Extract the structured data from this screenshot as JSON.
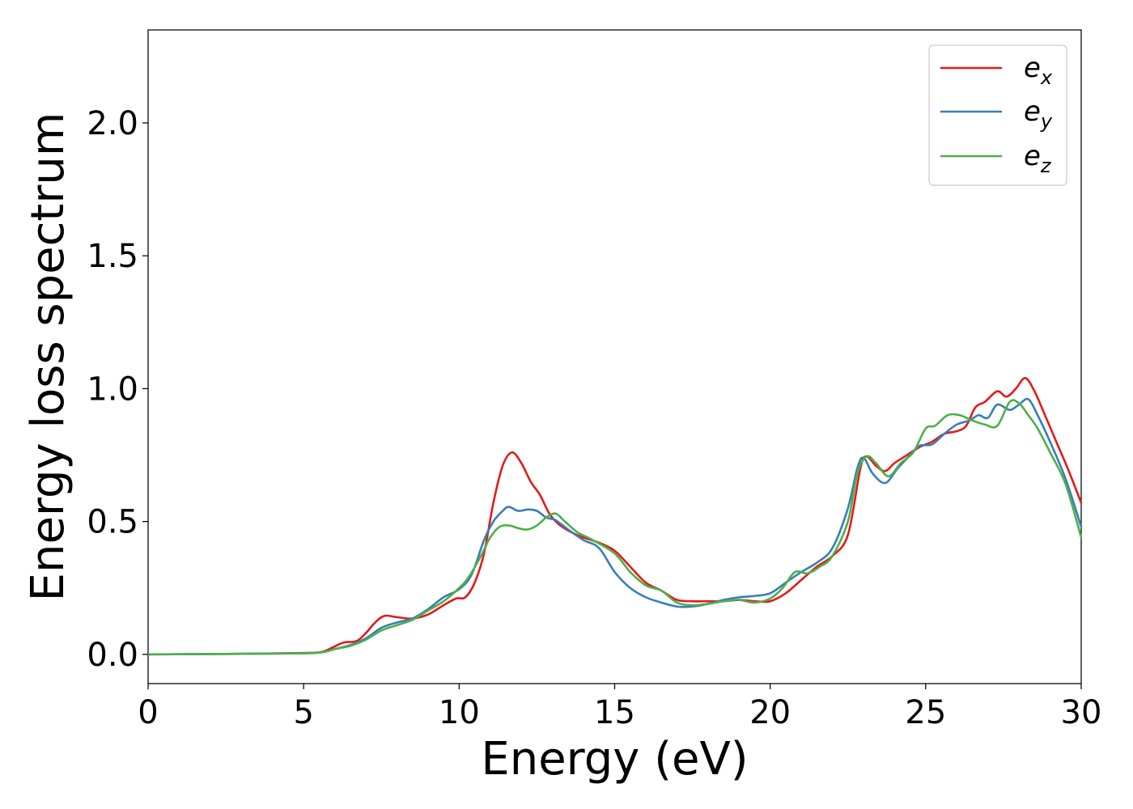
{
  "chart_data": {
    "type": "line",
    "title": "",
    "xlabel": "Energy (eV)",
    "ylabel": "Energy loss spectrum",
    "xlim": [
      0,
      30
    ],
    "ylim": [
      -0.11,
      2.35
    ],
    "xticks": [
      0,
      5,
      10,
      15,
      20,
      25,
      30
    ],
    "xtick_labels": [
      "0",
      "5",
      "10",
      "15",
      "20",
      "25",
      "30"
    ],
    "yticks": [
      0.0,
      0.5,
      1.0,
      1.5,
      2.0
    ],
    "ytick_labels": [
      "0.0",
      "0.5",
      "1.0",
      "1.5",
      "2.0"
    ],
    "grid": false,
    "legend_position": "top-right",
    "series": [
      {
        "name": "e",
        "subscript": "x",
        "color": "#e41a1c",
        "points": [
          [
            0,
            0
          ],
          [
            3,
            0.002
          ],
          [
            5,
            0.005
          ],
          [
            5.6,
            0.01
          ],
          [
            6,
            0.03
          ],
          [
            6.3,
            0.045
          ],
          [
            6.7,
            0.05
          ],
          [
            7,
            0.08
          ],
          [
            7.3,
            0.12
          ],
          [
            7.6,
            0.145
          ],
          [
            8,
            0.14
          ],
          [
            8.5,
            0.135
          ],
          [
            9,
            0.15
          ],
          [
            9.5,
            0.185
          ],
          [
            9.9,
            0.21
          ],
          [
            10.2,
            0.215
          ],
          [
            10.5,
            0.27
          ],
          [
            10.8,
            0.38
          ],
          [
            11.1,
            0.57
          ],
          [
            11.4,
            0.71
          ],
          [
            11.7,
            0.76
          ],
          [
            12,
            0.72
          ],
          [
            12.3,
            0.65
          ],
          [
            12.6,
            0.6
          ],
          [
            12.9,
            0.53
          ],
          [
            13.2,
            0.49
          ],
          [
            13.6,
            0.46
          ],
          [
            14,
            0.44
          ],
          [
            14.5,
            0.42
          ],
          [
            15,
            0.39
          ],
          [
            15.5,
            0.33
          ],
          [
            16,
            0.27
          ],
          [
            16.5,
            0.24
          ],
          [
            17,
            0.205
          ],
          [
            17.5,
            0.2
          ],
          [
            18,
            0.2
          ],
          [
            18.5,
            0.2
          ],
          [
            19,
            0.205
          ],
          [
            19.5,
            0.2
          ],
          [
            20,
            0.2
          ],
          [
            20.5,
            0.23
          ],
          [
            21,
            0.28
          ],
          [
            21.5,
            0.33
          ],
          [
            22,
            0.37
          ],
          [
            22.5,
            0.45
          ],
          [
            22.9,
            0.7
          ],
          [
            23.1,
            0.745
          ],
          [
            23.4,
            0.71
          ],
          [
            23.7,
            0.69
          ],
          [
            24,
            0.72
          ],
          [
            24.4,
            0.75
          ],
          [
            24.8,
            0.78
          ],
          [
            25.2,
            0.8
          ],
          [
            25.6,
            0.83
          ],
          [
            26,
            0.84
          ],
          [
            26.3,
            0.86
          ],
          [
            26.6,
            0.93
          ],
          [
            26.9,
            0.95
          ],
          [
            27.3,
            0.99
          ],
          [
            27.6,
            0.97
          ],
          [
            27.9,
            1.0
          ],
          [
            28.2,
            1.04
          ],
          [
            28.5,
            0.99
          ],
          [
            28.8,
            0.91
          ],
          [
            29.2,
            0.8
          ],
          [
            29.6,
            0.69
          ],
          [
            30,
            0.57
          ]
        ]
      },
      {
        "name": "e",
        "subscript": "y",
        "color": "#377eb8",
        "points": [
          [
            0,
            0
          ],
          [
            3,
            0.002
          ],
          [
            5,
            0.004
          ],
          [
            5.6,
            0.008
          ],
          [
            6,
            0.02
          ],
          [
            6.5,
            0.035
          ],
          [
            7,
            0.06
          ],
          [
            7.5,
            0.1
          ],
          [
            8,
            0.12
          ],
          [
            8.5,
            0.135
          ],
          [
            9,
            0.17
          ],
          [
            9.5,
            0.215
          ],
          [
            10,
            0.245
          ],
          [
            10.4,
            0.3
          ],
          [
            10.8,
            0.43
          ],
          [
            11.1,
            0.5
          ],
          [
            11.4,
            0.54
          ],
          [
            11.6,
            0.555
          ],
          [
            11.9,
            0.54
          ],
          [
            12.2,
            0.545
          ],
          [
            12.5,
            0.54
          ],
          [
            12.8,
            0.515
          ],
          [
            13.1,
            0.505
          ],
          [
            13.5,
            0.47
          ],
          [
            14,
            0.43
          ],
          [
            14.5,
            0.4
          ],
          [
            15,
            0.31
          ],
          [
            15.5,
            0.25
          ],
          [
            16,
            0.215
          ],
          [
            16.5,
            0.195
          ],
          [
            17,
            0.18
          ],
          [
            17.5,
            0.18
          ],
          [
            18,
            0.19
          ],
          [
            18.5,
            0.205
          ],
          [
            19,
            0.215
          ],
          [
            19.5,
            0.22
          ],
          [
            20,
            0.23
          ],
          [
            20.5,
            0.27
          ],
          [
            21,
            0.31
          ],
          [
            21.5,
            0.345
          ],
          [
            22,
            0.4
          ],
          [
            22.5,
            0.55
          ],
          [
            22.8,
            0.7
          ],
          [
            23,
            0.74
          ],
          [
            23.3,
            0.68
          ],
          [
            23.7,
            0.645
          ],
          [
            24.1,
            0.7
          ],
          [
            24.5,
            0.75
          ],
          [
            24.8,
            0.785
          ],
          [
            25.2,
            0.79
          ],
          [
            25.6,
            0.83
          ],
          [
            26,
            0.865
          ],
          [
            26.4,
            0.88
          ],
          [
            26.7,
            0.9
          ],
          [
            27,
            0.89
          ],
          [
            27.3,
            0.94
          ],
          [
            27.7,
            0.92
          ],
          [
            28,
            0.94
          ],
          [
            28.3,
            0.96
          ],
          [
            28.6,
            0.9
          ],
          [
            29,
            0.8
          ],
          [
            29.5,
            0.66
          ],
          [
            30,
            0.48
          ]
        ]
      },
      {
        "name": "e",
        "subscript": "z",
        "color": "#4daf4a",
        "points": [
          [
            0,
            0
          ],
          [
            3,
            0.002
          ],
          [
            5,
            0.004
          ],
          [
            5.6,
            0.008
          ],
          [
            6,
            0.02
          ],
          [
            6.5,
            0.032
          ],
          [
            7,
            0.055
          ],
          [
            7.5,
            0.09
          ],
          [
            8,
            0.11
          ],
          [
            8.5,
            0.13
          ],
          [
            9,
            0.165
          ],
          [
            9.5,
            0.2
          ],
          [
            10,
            0.25
          ],
          [
            10.3,
            0.29
          ],
          [
            10.7,
            0.37
          ],
          [
            11,
            0.44
          ],
          [
            11.3,
            0.48
          ],
          [
            11.6,
            0.485
          ],
          [
            11.9,
            0.475
          ],
          [
            12.2,
            0.47
          ],
          [
            12.5,
            0.485
          ],
          [
            12.8,
            0.515
          ],
          [
            13.1,
            0.53
          ],
          [
            13.4,
            0.5
          ],
          [
            13.8,
            0.46
          ],
          [
            14.3,
            0.43
          ],
          [
            15,
            0.38
          ],
          [
            15.5,
            0.31
          ],
          [
            16,
            0.26
          ],
          [
            16.5,
            0.24
          ],
          [
            17,
            0.195
          ],
          [
            17.5,
            0.185
          ],
          [
            18,
            0.19
          ],
          [
            18.5,
            0.2
          ],
          [
            19,
            0.205
          ],
          [
            19.5,
            0.195
          ],
          [
            20,
            0.21
          ],
          [
            20.4,
            0.25
          ],
          [
            20.8,
            0.31
          ],
          [
            21.2,
            0.305
          ],
          [
            21.6,
            0.33
          ],
          [
            22,
            0.37
          ],
          [
            22.5,
            0.5
          ],
          [
            22.8,
            0.68
          ],
          [
            23.1,
            0.745
          ],
          [
            23.4,
            0.72
          ],
          [
            23.8,
            0.67
          ],
          [
            24.2,
            0.72
          ],
          [
            24.6,
            0.76
          ],
          [
            25,
            0.85
          ],
          [
            25.3,
            0.86
          ],
          [
            25.7,
            0.9
          ],
          [
            26.1,
            0.9
          ],
          [
            26.5,
            0.88
          ],
          [
            26.9,
            0.865
          ],
          [
            27.3,
            0.86
          ],
          [
            27.7,
            0.95
          ],
          [
            28,
            0.945
          ],
          [
            28.3,
            0.9
          ],
          [
            28.6,
            0.85
          ],
          [
            29,
            0.76
          ],
          [
            29.5,
            0.64
          ],
          [
            30,
            0.44
          ]
        ]
      }
    ]
  }
}
